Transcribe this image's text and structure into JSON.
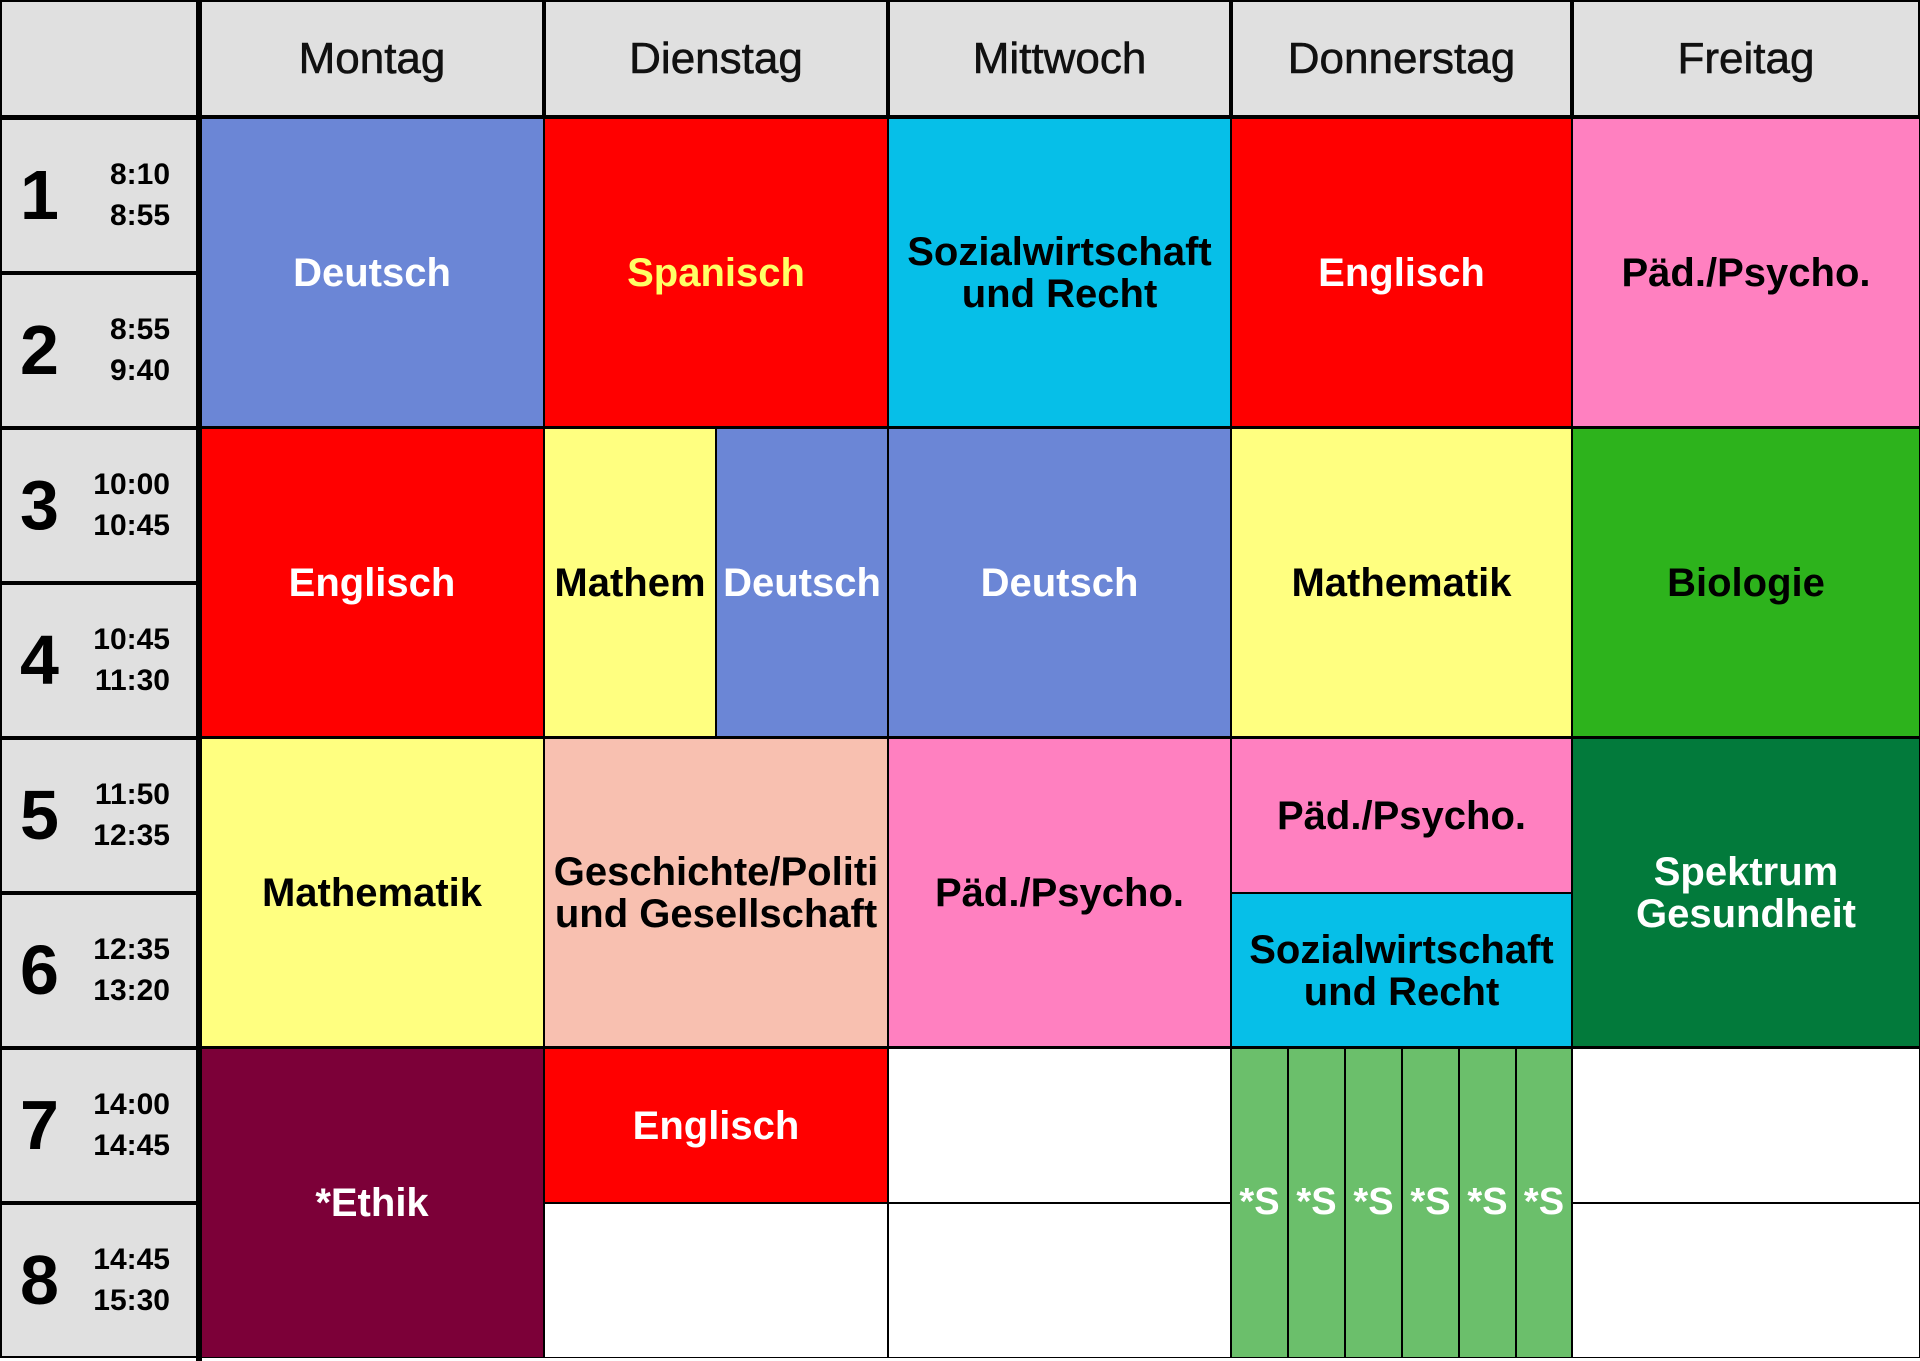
{
  "days": [
    "Montag",
    "Dienstag",
    "Mittwoch",
    "Donnerstag",
    "Freitag"
  ],
  "periods": [
    {
      "num": "1",
      "start": "8:10",
      "end": "8:55"
    },
    {
      "num": "2",
      "start": "8:55",
      "end": "9:40"
    },
    {
      "num": "3",
      "start": "10:00",
      "end": "10:45"
    },
    {
      "num": "4",
      "start": "10:45",
      "end": "11:30"
    },
    {
      "num": "5",
      "start": "11:50",
      "end": "12:35"
    },
    {
      "num": "6",
      "start": "12:35",
      "end": "13:20"
    },
    {
      "num": "7",
      "start": "14:00",
      "end": "14:45"
    },
    {
      "num": "8",
      "start": "14:45",
      "end": "15:30"
    }
  ],
  "colors": {
    "deutsch": "#6b86d6",
    "englisch": "#ff0000",
    "sozial": "#06bfe8",
    "paed": "#ff80c0",
    "mathe": "#ffff80",
    "bio": "#2db31c",
    "geschichte": "#f8c0b0",
    "spektrum": "#027a3b",
    "ethik": "#7c0038",
    "s": "#6bbf6b"
  },
  "lessons": {
    "mo_12": "Deutsch",
    "di_12": "Spanisch",
    "mi_12": "Sozialwirtschaft\nund Recht",
    "do_12": "Englisch",
    "fr_12": "Päd./Psycho.",
    "mo_34": "Englisch",
    "di_34a": "Mathem",
    "di_34b": "Deutsch",
    "mi_34": "Deutsch",
    "do_34": "Mathematik",
    "fr_34": "Biologie",
    "mo_56": "Mathematik",
    "di_56": "Geschichte/Politi\nund Gesellschaft",
    "mi_56": "Päd./Psycho.",
    "do_5": "Päd./Psycho.",
    "do_6": "Sozialwirtschaft\nund Recht",
    "fr_56": "Spektrum\nGesundheit",
    "mo_78": "*Ethik",
    "di_7": "Englisch",
    "do_78": [
      "*S",
      "*S",
      "*S",
      "*S",
      "*S",
      "*S"
    ]
  }
}
